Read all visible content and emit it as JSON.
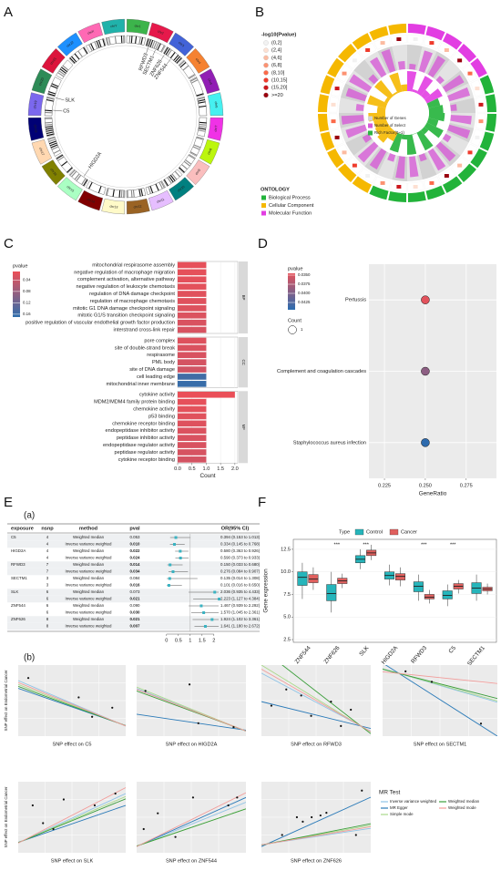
{
  "panel_labels": [
    "A",
    "B",
    "C",
    "D",
    "E",
    "F"
  ],
  "panel_a": {
    "chromosomes": [
      {
        "name": "chr1",
        "color": "#3cb44b"
      },
      {
        "name": "chr2",
        "color": "#e6194b"
      },
      {
        "name": "chr3",
        "color": "#4363d8"
      },
      {
        "name": "chr4",
        "color": "#f58231"
      },
      {
        "name": "chr5",
        "color": "#911eb4"
      },
      {
        "name": "chr6",
        "color": "#46f0f0"
      },
      {
        "name": "chr7",
        "color": "#f032e6"
      },
      {
        "name": "chr8",
        "color": "#bcf60c"
      },
      {
        "name": "chr9",
        "color": "#fabebe"
      },
      {
        "name": "chr10",
        "color": "#008080"
      },
      {
        "name": "chr11",
        "color": "#e6beff"
      },
      {
        "name": "chr12",
        "color": "#9a6324"
      },
      {
        "name": "chr13",
        "color": "#fffac8"
      },
      {
        "name": "chr14",
        "color": "#800000"
      },
      {
        "name": "chr15",
        "color": "#aaffc3"
      },
      {
        "name": "chr16",
        "color": "#808000"
      },
      {
        "name": "chr17",
        "color": "#ffd8b1"
      },
      {
        "name": "chr18",
        "color": "#000075"
      },
      {
        "name": "chr19",
        "color": "#7b68ee"
      },
      {
        "name": "chr20",
        "color": "#2e8b57"
      },
      {
        "name": "chr21",
        "color": "#dc143c"
      },
      {
        "name": "chr22",
        "color": "#1e90ff"
      },
      {
        "name": "chrX",
        "color": "#ff69b4"
      },
      {
        "name": "chrY",
        "color": "#20b2aa"
      }
    ],
    "genes": [
      "RFWD3",
      "SECTM1",
      "ZNF626",
      "ZNF544",
      "SLK",
      "C5",
      "HIGD2A"
    ]
  },
  "panel_b": {
    "pvalue_title": "-log10(Pvalue)",
    "pvalue_bins": [
      {
        "label": "(0,2]",
        "color": "#f2f2f2"
      },
      {
        "label": "(2,4]",
        "color": "#fde0d2"
      },
      {
        "label": "(4,6]",
        "color": "#fcbba1"
      },
      {
        "label": "(6,8]",
        "color": "#fc9272"
      },
      {
        "label": "(8,10]",
        "color": "#fb6a4a"
      },
      {
        "label": "(10,15]",
        "color": "#ef3b2c"
      },
      {
        "label": "(15,20]",
        "color": "#cb181d"
      },
      {
        "label": ">=20",
        "color": "#99000d"
      }
    ],
    "ring_legend": [
      {
        "label": "Number of Genes",
        "color": "#d4d4d4"
      },
      {
        "label": "Number of Select",
        "color": "#d65bd6"
      },
      {
        "label": "Rich Factor(0~1)",
        "color": "#2fb344"
      }
    ],
    "ontology_title": "ONTOLOGY",
    "ontologies": [
      {
        "name": "Biological Process",
        "color": "#22b33a"
      },
      {
        "name": "Cellular Component",
        "color": "#f5b800"
      },
      {
        "name": "Molecular Function",
        "color": "#e23de2"
      }
    ]
  },
  "chart_data": [
    {
      "type": "facet_bar",
      "xlabel": "Count",
      "xlim": [
        0,
        2.1
      ],
      "xticks": [
        {
          "value": 0,
          "label": "0.0"
        },
        0.5,
        {
          "value": 1,
          "label": "1.0"
        },
        1.5,
        {
          "value": 2,
          "label": "2.0"
        }
      ],
      "color_legend": {
        "title": "pvalue",
        "lim": [
          0.01,
          0.17
        ],
        "ticks": [
          0.04,
          0.08,
          0.12,
          0.16
        ],
        "colors": [
          "#ec4f57",
          "#2f6fad"
        ]
      },
      "facets": [
        {
          "name": "BP",
          "categories": [
            "mitochondrial respirasome assembly",
            "negative regulation of macrophage migration",
            "complement activation, alternative pathway",
            "negative regulation of leukocyte chemotaxis",
            "regulation of DNA damage checkpoint",
            "regulation of macrophage chemotaxis",
            "mitotic G1 DNA damage checkpoint signaling",
            "mitotic G1/S transition checkpoint signaling",
            "positive regulation of vascular endothelial growth factor production",
            "interstrand cross-link repair"
          ],
          "values": [
            1,
            1,
            1,
            1,
            1,
            1,
            1,
            1,
            1,
            1
          ],
          "pvalues": [
            0.015,
            0.016,
            0.017,
            0.018,
            0.02,
            0.021,
            0.023,
            0.024,
            0.026,
            0.028
          ]
        },
        {
          "name": "CC",
          "categories": [
            "pore complex",
            "site of double-strand break",
            "respirasome",
            "PML body",
            "site of DNA damage",
            "cell leading edge",
            "mitochondrial inner membrane"
          ],
          "values": [
            1,
            1,
            1,
            1,
            1,
            1,
            1
          ],
          "pvalues": [
            0.022,
            0.025,
            0.027,
            0.03,
            0.034,
            0.155,
            0.162
          ]
        },
        {
          "name": "MF",
          "categories": [
            "cytokine activity",
            "MDM2/MDM4 family protein binding",
            "chemokine activity",
            "p53 binding",
            "chemokine receptor binding",
            "endopeptidase inhibitor activity",
            "peptidase inhibitor activity",
            "endopeptidase regulator activity",
            "peptidase regulator activity",
            "cytokine receptor binding"
          ],
          "values": [
            2,
            1,
            1,
            1,
            1,
            1,
            1,
            1,
            1,
            1
          ],
          "pvalues": [
            0.012,
            0.015,
            0.018,
            0.02,
            0.022,
            0.024,
            0.026,
            0.027,
            0.029,
            0.031
          ]
        }
      ]
    },
    {
      "type": "dot",
      "categories": [
        "Pertussis",
        "Complement and coagulation cascades",
        "Staphylococcus aureus infection"
      ],
      "x": [
        0.25,
        0.25,
        0.25
      ],
      "pvalues": [
        0.0346,
        0.0392,
        0.0443
      ],
      "counts": [
        1,
        1,
        1
      ],
      "xlabel": "GeneRatio",
      "xlim": [
        0.2155,
        0.2935
      ],
      "xticks": [
        0.225,
        {
          "value": 0.25,
          "label": "0.250"
        },
        0.275
      ],
      "color_legend": {
        "title": "pvalue",
        "lim": [
          0.0345,
          0.0445
        ],
        "ticks": [
          {
            "value": 0.035,
            "label": "0.0350"
          },
          0.0375,
          {
            "value": 0.04,
            "label": "0.0400"
          },
          0.0425
        ],
        "colors": [
          "#e4525b",
          "#2a6cb0"
        ]
      },
      "size_legend": {
        "title": "Count",
        "values": [
          1
        ]
      }
    },
    {
      "type": "box",
      "categories": [
        "ZNF544",
        "ZNF626",
        "SLK",
        "HIGD2A",
        "RFWD3",
        "C5",
        "SECTM1"
      ],
      "ylabel": "Gene expression",
      "ylim": [
        2.2,
        13.6
      ],
      "yticks": [
        2.5,
        {
          "value": 5,
          "label": "5.0"
        },
        7.5,
        {
          "value": 10,
          "label": "10.0"
        },
        12.5
      ],
      "legend_title": "Type",
      "significance": [
        null,
        "***",
        "***",
        null,
        "***",
        "***",
        null
      ],
      "series": [
        {
          "name": "Control",
          "color": "#26b5bb",
          "whisker_low": [
            7.0,
            5.5,
            10.3,
            8.5,
            6.8,
            6.2,
            6.8
          ],
          "q1": [
            8.5,
            6.8,
            11.0,
            9.2,
            7.8,
            7.0,
            7.6
          ],
          "median": [
            9.4,
            7.6,
            11.4,
            9.6,
            8.4,
            7.4,
            8.2
          ],
          "q3": [
            10.0,
            8.6,
            11.8,
            10.0,
            8.9,
            7.9,
            8.8
          ],
          "whisker_high": [
            11.0,
            10.0,
            12.5,
            10.8,
            9.7,
            8.6,
            9.7
          ]
        },
        {
          "name": "Cancer",
          "color": "#e0605e",
          "whisker_low": [
            8.0,
            8.2,
            11.3,
            8.4,
            6.5,
            7.6,
            7.5
          ],
          "q1": [
            8.8,
            8.7,
            11.8,
            9.1,
            7.0,
            8.1,
            7.9
          ],
          "median": [
            9.2,
            9.0,
            12.1,
            9.5,
            7.2,
            8.4,
            8.1
          ],
          "q3": [
            9.7,
            9.3,
            12.4,
            9.8,
            7.5,
            8.7,
            8.3
          ],
          "whisker_high": [
            10.5,
            9.8,
            13.0,
            10.5,
            8.0,
            9.1,
            8.7
          ]
        }
      ]
    },
    {
      "type": "mr_scatter",
      "ylabel": "SNP effect on Endometrial Cancer",
      "legend_title": "MR Test",
      "methods": [
        {
          "name": "Inverse variance weighted",
          "color": "#8ec3e6"
        },
        {
          "name": "MR Egger",
          "color": "#2a7ab8"
        },
        {
          "name": "Simple mode",
          "color": "#a9d98a"
        },
        {
          "name": "Weighted median",
          "color": "#3a9e3a"
        },
        {
          "name": "Weighted mode",
          "color": "#f29c9a"
        }
      ],
      "plots": [
        {
          "xlabel": "SNP effect on C5",
          "xlim": [
            -0.3,
            0.02
          ],
          "ylim": [
            -0.1,
            0.45
          ],
          "x": [
            -0.27,
            -0.12,
            -0.08,
            -0.02
          ],
          "y": [
            0.35,
            0.2,
            0.05,
            0.12
          ],
          "slopes": [
            -1.1,
            -0.9,
            -1.0,
            -0.95,
            -1.05
          ]
        },
        {
          "xlabel": "SNP effect on HIGD2A",
          "xlim": [
            -0.6,
            0.02
          ],
          "ylim": [
            -0.05,
            0.5
          ],
          "x": [
            -0.55,
            -0.3,
            -0.25,
            -0.05
          ],
          "y": [
            0.3,
            0.35,
            0.05,
            0.02
          ],
          "slopes": [
            -0.53,
            -0.2,
            -0.55,
            -0.5,
            -0.52
          ]
        },
        {
          "xlabel": "SNP effect on RFWD3",
          "xlim": [
            -0.2,
            0.02
          ],
          "ylim": [
            -0.05,
            0.3
          ],
          "x": [
            -0.18,
            -0.15,
            -0.12,
            -0.1,
            -0.06,
            -0.04,
            -0.02
          ],
          "y": [
            0.1,
            0.18,
            0.15,
            0.05,
            0.12,
            0.0,
            0.08
          ],
          "slopes": [
            -1.3,
            -0.6,
            -1.5,
            -1.9,
            -1.4
          ]
        },
        {
          "xlabel": "SNP effect on SECTM1",
          "xlim": [
            -0.05,
            0.3
          ],
          "ylim": [
            -1.5,
            0.2
          ],
          "x": [
            0.02,
            0.1,
            0.25
          ],
          "y": [
            0.05,
            -0.2,
            -1.2
          ],
          "slopes": [
            -2.3,
            -5,
            -2.2,
            -2,
            -0.8
          ]
        },
        {
          "xlabel": "SNP effect on SLK",
          "xlim": [
            -0.02,
            0.5
          ],
          "ylim": [
            -0.1,
            0.5
          ],
          "x": [
            0.05,
            0.1,
            0.15,
            0.2,
            0.35,
            0.45
          ],
          "y": [
            0.3,
            0.15,
            0.1,
            0.35,
            0.3,
            0.4
          ],
          "slopes": [
            0.8,
            0.6,
            0.75,
            0.71,
            0.9
          ]
        },
        {
          "xlabel": "SNP effect on ZNF544",
          "xlim": [
            -0.02,
            0.6
          ],
          "ylim": [
            -0.05,
            0.4
          ],
          "x": [
            0.02,
            0.1,
            0.2,
            0.3,
            0.5,
            0.55
          ],
          "y": [
            0.1,
            0.2,
            0.05,
            0.3,
            0.25,
            0.3
          ],
          "slopes": [
            0.45,
            0.5,
            0.38,
            0.38,
            0.55
          ]
        },
        {
          "xlabel": "SNP effect on ZNF626",
          "xlim": [
            -0.02,
            0.35
          ],
          "ylim": [
            -0.1,
            0.7
          ],
          "x": [
            0.05,
            0.1,
            0.12,
            0.15,
            0.18,
            0.2,
            0.3,
            0.32
          ],
          "y": [
            0.1,
            0.3,
            0.25,
            0.3,
            0.32,
            0.35,
            0.1,
            0.6
          ],
          "slopes": [
            0.5,
            1.5,
            0.6,
            0.65,
            0.55
          ]
        }
      ]
    }
  ],
  "mr_table": {
    "sub_labels": [
      "(a)",
      "(b)"
    ],
    "columns": [
      "exposure",
      "nsnp",
      "method",
      "pval",
      "OR(95% CI)"
    ],
    "forest": {
      "xlim": [
        -0.3,
        2.2
      ],
      "xticks": [
        0,
        0.5,
        1,
        1.5,
        2
      ],
      "color": "#3ab3c2"
    },
    "rows": [
      {
        "exposure": "C5",
        "nsnp": 4,
        "method": "Weighted median",
        "pval": "0.053",
        "or": 0.394,
        "lo": 0.153,
        "hi": 1.013,
        "ci_text": "0.394 (0.153 to 1.013)"
      },
      {
        "exposure": null,
        "nsnp": 4,
        "method": "Inverse variance weighted",
        "pval": "0.010",
        "or": 0.334,
        "lo": 0.145,
        "hi": 0.768,
        "ci_text": "0.334 (0.145 to 0.768)"
      },
      {
        "exposure": "HIGD2A",
        "nsnp": 4,
        "method": "Weighted median",
        "pval": "0.022",
        "or": 0.58,
        "lo": 0.363,
        "hi": 0.926,
        "ci_text": "0.580 (0.363 to 0.926)"
      },
      {
        "exposure": null,
        "nsnp": 4,
        "method": "Inverse variance weighted",
        "pval": "0.024",
        "or": 0.59,
        "lo": 0.373,
        "hi": 0.933,
        "ci_text": "0.590 (0.373 to 0.933)"
      },
      {
        "exposure": "RFWD3",
        "nsnp": 7,
        "method": "Weighted median",
        "pval": "0.014",
        "or": 0.15,
        "lo": 0.033,
        "hi": 0.68,
        "ci_text": "0.150 (0.033 to 0.680)"
      },
      {
        "exposure": null,
        "nsnp": 7,
        "method": "Inverse variance weighted",
        "pval": "0.034",
        "or": 0.276,
        "lo": 0.084,
        "hi": 0.907,
        "ci_text": "0.276 (0.084 to 0.907)"
      },
      {
        "exposure": "SECTM1",
        "nsnp": 3,
        "method": "Weighted median",
        "pval": "0.084",
        "or": 0.135,
        "lo": 0.014,
        "hi": 1.308,
        "ci_text": "0.135 (0.014 to 1.308)"
      },
      {
        "exposure": null,
        "nsnp": 3,
        "method": "Inverse variance weighted",
        "pval": "0.016",
        "or": 0.101,
        "lo": 0.016,
        "hi": 0.65,
        "ci_text": "0.101 (0.016 to 0.650)"
      },
      {
        "exposure": "SLK",
        "nsnp": 6,
        "method": "Weighted median",
        "pval": "0.073",
        "or": 2.036,
        "lo": 0.935,
        "hi": 4.433,
        "ci_text": "2.036 (0.935 to 4.433)"
      },
      {
        "exposure": null,
        "nsnp": 6,
        "method": "Inverse variance weighted",
        "pval": "0.021",
        "or": 2.223,
        "lo": 1.127,
        "hi": 4.384,
        "ci_text": "2.223 (1.127 to 4.384)"
      },
      {
        "exposure": "ZNF544",
        "nsnp": 6,
        "method": "Weighted median",
        "pval": "0.090",
        "or": 1.467,
        "lo": 0.939,
        "hi": 2.292,
        "ci_text": "1.467 (0.939 to 2.292)"
      },
      {
        "exposure": null,
        "nsnp": 6,
        "method": "Inverse variance weighted",
        "pval": "0.030",
        "or": 1.57,
        "lo": 1.045,
        "hi": 2.361,
        "ci_text": "1.570 (1.045 to 2.361)"
      },
      {
        "exposure": "ZNF626",
        "nsnp": 8,
        "method": "Weighted median",
        "pval": "0.021",
        "or": 1.924,
        "lo": 1.102,
        "hi": 3.361,
        "ci_text": "1.924 (1.102 to 3.361)"
      },
      {
        "exposure": null,
        "nsnp": 8,
        "method": "Inverse variance weighted",
        "pval": "0.007",
        "or": 1.641,
        "lo": 1.18,
        "hi": 2.672,
        "ci_text": "1.641 (1.180 to 2.672)"
      }
    ]
  }
}
